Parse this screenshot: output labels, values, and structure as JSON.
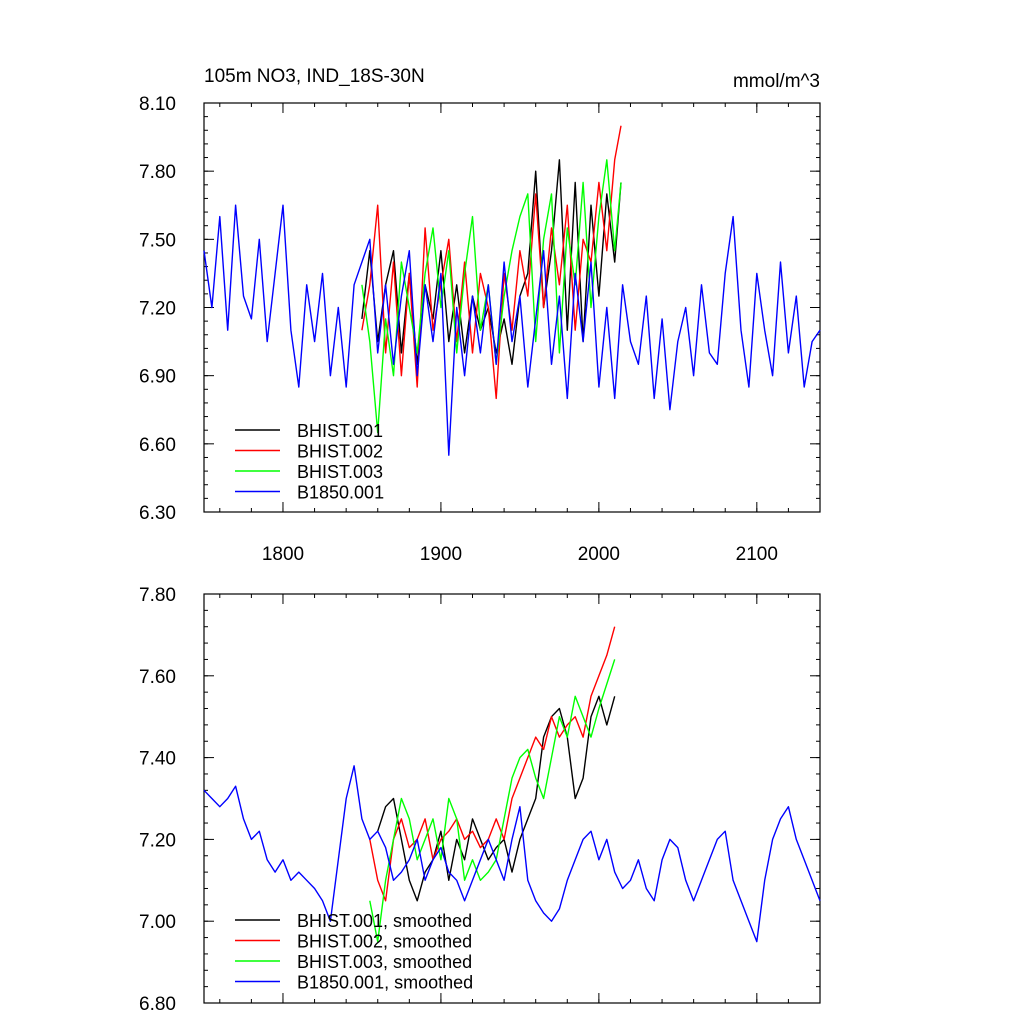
{
  "chart_data": [
    {
      "type": "line",
      "title": "105m NO3, IND_18S-30N",
      "units": "mmol/m^3",
      "xlim": [
        1750,
        2140
      ],
      "ylim": [
        6.3,
        8.1
      ],
      "x_ticks": [
        1800,
        1900,
        2000,
        2100
      ],
      "x_tick_labels": [
        "1800",
        "1900",
        "2000",
        "2100"
      ],
      "y_ticks": [
        6.3,
        6.6,
        6.9,
        7.2,
        7.5,
        7.8,
        8.1
      ],
      "y_tick_labels": [
        "6.30",
        "6.60",
        "6.90",
        "7.20",
        "7.50",
        "7.80",
        "8.10"
      ],
      "grid": false,
      "legend_position": "bottom-left",
      "series": [
        {
          "name": "BHIST.001",
          "color": "#000000",
          "x": [
            1850,
            1855,
            1860,
            1865,
            1870,
            1875,
            1880,
            1885,
            1890,
            1895,
            1900,
            1905,
            1910,
            1915,
            1920,
            1925,
            1930,
            1935,
            1940,
            1945,
            1950,
            1955,
            1960,
            1965,
            1970,
            1975,
            1980,
            1985,
            1990,
            1995,
            2000,
            2005,
            2010,
            2014
          ],
          "values": [
            7.15,
            7.45,
            7.05,
            7.3,
            7.45,
            7.0,
            7.35,
            6.95,
            7.3,
            7.15,
            7.45,
            7.05,
            7.3,
            7.0,
            7.25,
            7.1,
            7.2,
            7.0,
            7.15,
            6.95,
            7.25,
            7.35,
            7.8,
            7.2,
            7.45,
            7.85,
            7.1,
            7.75,
            7.05,
            7.65,
            7.25,
            7.7,
            7.4,
            7.75
          ]
        },
        {
          "name": "BHIST.002",
          "color": "#ff0000",
          "x": [
            1850,
            1855,
            1860,
            1865,
            1870,
            1875,
            1880,
            1885,
            1890,
            1895,
            1900,
            1905,
            1910,
            1915,
            1920,
            1925,
            1930,
            1935,
            1940,
            1945,
            1950,
            1955,
            1960,
            1965,
            1970,
            1975,
            1980,
            1985,
            1990,
            1995,
            2000,
            2005,
            2010,
            2014
          ],
          "values": [
            7.1,
            7.3,
            7.65,
            7.0,
            7.4,
            6.9,
            7.35,
            6.85,
            7.55,
            7.1,
            7.3,
            7.5,
            7.05,
            7.4,
            7.0,
            7.35,
            7.2,
            6.8,
            7.35,
            7.1,
            7.45,
            7.25,
            7.7,
            7.2,
            7.55,
            7.3,
            7.65,
            7.1,
            7.5,
            7.4,
            7.75,
            7.45,
            7.85,
            8.0
          ]
        },
        {
          "name": "BHIST.003",
          "color": "#00ff00",
          "x": [
            1850,
            1855,
            1860,
            1865,
            1870,
            1875,
            1880,
            1885,
            1890,
            1895,
            1900,
            1905,
            1910,
            1915,
            1920,
            1925,
            1930,
            1935,
            1940,
            1945,
            1950,
            1955,
            1960,
            1965,
            1970,
            1975,
            1980,
            1985,
            1990,
            1995,
            2000,
            2005,
            2010,
            2014
          ],
          "values": [
            7.3,
            7.05,
            6.65,
            7.15,
            6.9,
            7.4,
            7.2,
            7.0,
            7.35,
            7.55,
            7.2,
            7.45,
            7.0,
            7.35,
            7.6,
            7.1,
            7.3,
            6.95,
            7.25,
            7.45,
            7.6,
            7.7,
            7.05,
            7.5,
            7.7,
            7.0,
            7.55,
            7.3,
            7.75,
            7.2,
            7.6,
            7.85,
            7.45,
            7.75
          ]
        },
        {
          "name": "B1850.001",
          "color": "#0000ff",
          "x": [
            1750,
            1755,
            1760,
            1765,
            1770,
            1775,
            1780,
            1785,
            1790,
            1795,
            1800,
            1805,
            1810,
            1815,
            1820,
            1825,
            1830,
            1835,
            1840,
            1845,
            1850,
            1855,
            1860,
            1865,
            1870,
            1875,
            1880,
            1885,
            1890,
            1895,
            1900,
            1905,
            1910,
            1915,
            1920,
            1925,
            1930,
            1935,
            1940,
            1945,
            1950,
            1955,
            1960,
            1965,
            1970,
            1975,
            1980,
            1985,
            1990,
            1995,
            2000,
            2005,
            2010,
            2015,
            2020,
            2025,
            2030,
            2035,
            2040,
            2045,
            2050,
            2055,
            2060,
            2065,
            2070,
            2075,
            2080,
            2085,
            2090,
            2095,
            2100,
            2105,
            2110,
            2115,
            2120,
            2125,
            2130,
            2135,
            2140
          ],
          "values": [
            7.45,
            7.2,
            7.6,
            7.1,
            7.65,
            7.25,
            7.15,
            7.5,
            7.05,
            7.35,
            7.65,
            7.1,
            6.85,
            7.3,
            7.05,
            7.35,
            6.9,
            7.2,
            6.85,
            7.3,
            7.4,
            7.5,
            7.0,
            7.3,
            6.95,
            7.25,
            7.45,
            6.9,
            7.3,
            7.05,
            7.35,
            6.55,
            7.2,
            6.9,
            7.25,
            7.0,
            7.3,
            6.95,
            7.4,
            7.05,
            7.25,
            6.85,
            7.15,
            7.45,
            6.95,
            7.25,
            6.8,
            7.35,
            7.05,
            7.4,
            6.85,
            7.2,
            6.8,
            7.3,
            7.05,
            6.95,
            7.25,
            6.8,
            7.15,
            6.75,
            7.05,
            7.2,
            6.9,
            7.3,
            7.0,
            6.95,
            7.35,
            7.6,
            7.1,
            6.85,
            7.35,
            7.1,
            6.9,
            7.4,
            7.0,
            7.25,
            6.85,
            7.05,
            7.1
          ]
        }
      ]
    },
    {
      "type": "line",
      "xlim": [
        1750,
        2140
      ],
      "ylim": [
        6.8,
        7.8
      ],
      "x_ticks": [
        1800,
        1900,
        2000,
        2100
      ],
      "y_ticks": [
        6.8,
        7.0,
        7.2,
        7.4,
        7.6,
        7.8
      ],
      "y_tick_labels": [
        "6.80",
        "7.00",
        "7.20",
        "7.40",
        "7.60",
        "7.80"
      ],
      "grid": false,
      "legend_position": "bottom-left",
      "series": [
        {
          "name": "BHIST.001, smoothed",
          "color": "#000000",
          "x": [
            1860,
            1865,
            1870,
            1875,
            1880,
            1885,
            1890,
            1895,
            1900,
            1905,
            1910,
            1915,
            1920,
            1925,
            1930,
            1935,
            1940,
            1945,
            1950,
            1955,
            1960,
            1965,
            1970,
            1975,
            1980,
            1985,
            1990,
            1995,
            2000,
            2005,
            2010
          ],
          "values": [
            7.22,
            7.28,
            7.3,
            7.2,
            7.1,
            7.05,
            7.12,
            7.15,
            7.22,
            7.1,
            7.2,
            7.15,
            7.25,
            7.2,
            7.15,
            7.18,
            7.2,
            7.12,
            7.2,
            7.25,
            7.3,
            7.45,
            7.5,
            7.52,
            7.45,
            7.3,
            7.35,
            7.5,
            7.55,
            7.48,
            7.55
          ]
        },
        {
          "name": "BHIST.002, smoothed",
          "color": "#ff0000",
          "x": [
            1855,
            1860,
            1865,
            1870,
            1875,
            1880,
            1885,
            1890,
            1895,
            1900,
            1905,
            1910,
            1915,
            1920,
            1925,
            1930,
            1935,
            1940,
            1945,
            1950,
            1955,
            1960,
            1965,
            1970,
            1975,
            1980,
            1985,
            1990,
            1995,
            2000,
            2005,
            2010
          ],
          "values": [
            7.2,
            7.1,
            7.05,
            7.2,
            7.25,
            7.18,
            7.2,
            7.25,
            7.15,
            7.2,
            7.22,
            7.25,
            7.2,
            7.22,
            7.18,
            7.2,
            7.25,
            7.2,
            7.3,
            7.35,
            7.4,
            7.45,
            7.42,
            7.5,
            7.45,
            7.48,
            7.5,
            7.45,
            7.55,
            7.6,
            7.65,
            7.72
          ]
        },
        {
          "name": "BHIST.003, smoothed",
          "color": "#00ff00",
          "x": [
            1855,
            1860,
            1865,
            1870,
            1875,
            1880,
            1885,
            1890,
            1895,
            1900,
            1905,
            1910,
            1915,
            1920,
            1925,
            1930,
            1935,
            1940,
            1945,
            1950,
            1955,
            1960,
            1965,
            1970,
            1975,
            1980,
            1985,
            1990,
            1995,
            2000,
            2005,
            2010
          ],
          "values": [
            7.05,
            6.95,
            7.1,
            7.2,
            7.3,
            7.25,
            7.15,
            7.2,
            7.25,
            7.15,
            7.3,
            7.25,
            7.1,
            7.15,
            7.1,
            7.12,
            7.15,
            7.25,
            7.35,
            7.4,
            7.42,
            7.35,
            7.3,
            7.4,
            7.5,
            7.45,
            7.55,
            7.5,
            7.45,
            7.52,
            7.58,
            7.64
          ]
        },
        {
          "name": "B1850.001, smoothed",
          "color": "#0000ff",
          "x": [
            1750,
            1755,
            1760,
            1765,
            1770,
            1775,
            1780,
            1785,
            1790,
            1795,
            1800,
            1805,
            1810,
            1815,
            1820,
            1825,
            1830,
            1835,
            1840,
            1845,
            1850,
            1855,
            1860,
            1865,
            1870,
            1875,
            1880,
            1885,
            1890,
            1895,
            1900,
            1905,
            1910,
            1915,
            1920,
            1925,
            1930,
            1935,
            1940,
            1945,
            1950,
            1955,
            1960,
            1965,
            1970,
            1975,
            1980,
            1985,
            1990,
            1995,
            2000,
            2005,
            2010,
            2015,
            2020,
            2025,
            2030,
            2035,
            2040,
            2045,
            2050,
            2055,
            2060,
            2065,
            2070,
            2075,
            2080,
            2085,
            2090,
            2095,
            2100,
            2105,
            2110,
            2115,
            2120,
            2125,
            2130,
            2135,
            2140
          ],
          "values": [
            7.32,
            7.3,
            7.28,
            7.3,
            7.33,
            7.25,
            7.2,
            7.22,
            7.15,
            7.12,
            7.15,
            7.1,
            7.12,
            7.1,
            7.08,
            7.05,
            7.0,
            7.15,
            7.3,
            7.38,
            7.25,
            7.2,
            7.22,
            7.18,
            7.1,
            7.12,
            7.15,
            7.2,
            7.1,
            7.15,
            7.18,
            7.12,
            7.1,
            7.05,
            7.1,
            7.15,
            7.2,
            7.15,
            7.1,
            7.2,
            7.28,
            7.1,
            7.05,
            7.02,
            7.0,
            7.03,
            7.1,
            7.15,
            7.2,
            7.22,
            7.15,
            7.2,
            7.12,
            7.08,
            7.1,
            7.15,
            7.08,
            7.05,
            7.15,
            7.2,
            7.18,
            7.1,
            7.05,
            7.1,
            7.15,
            7.2,
            7.22,
            7.1,
            7.05,
            7.0,
            6.95,
            7.1,
            7.2,
            7.25,
            7.28,
            7.2,
            7.15,
            7.1,
            7.05
          ]
        }
      ]
    }
  ]
}
